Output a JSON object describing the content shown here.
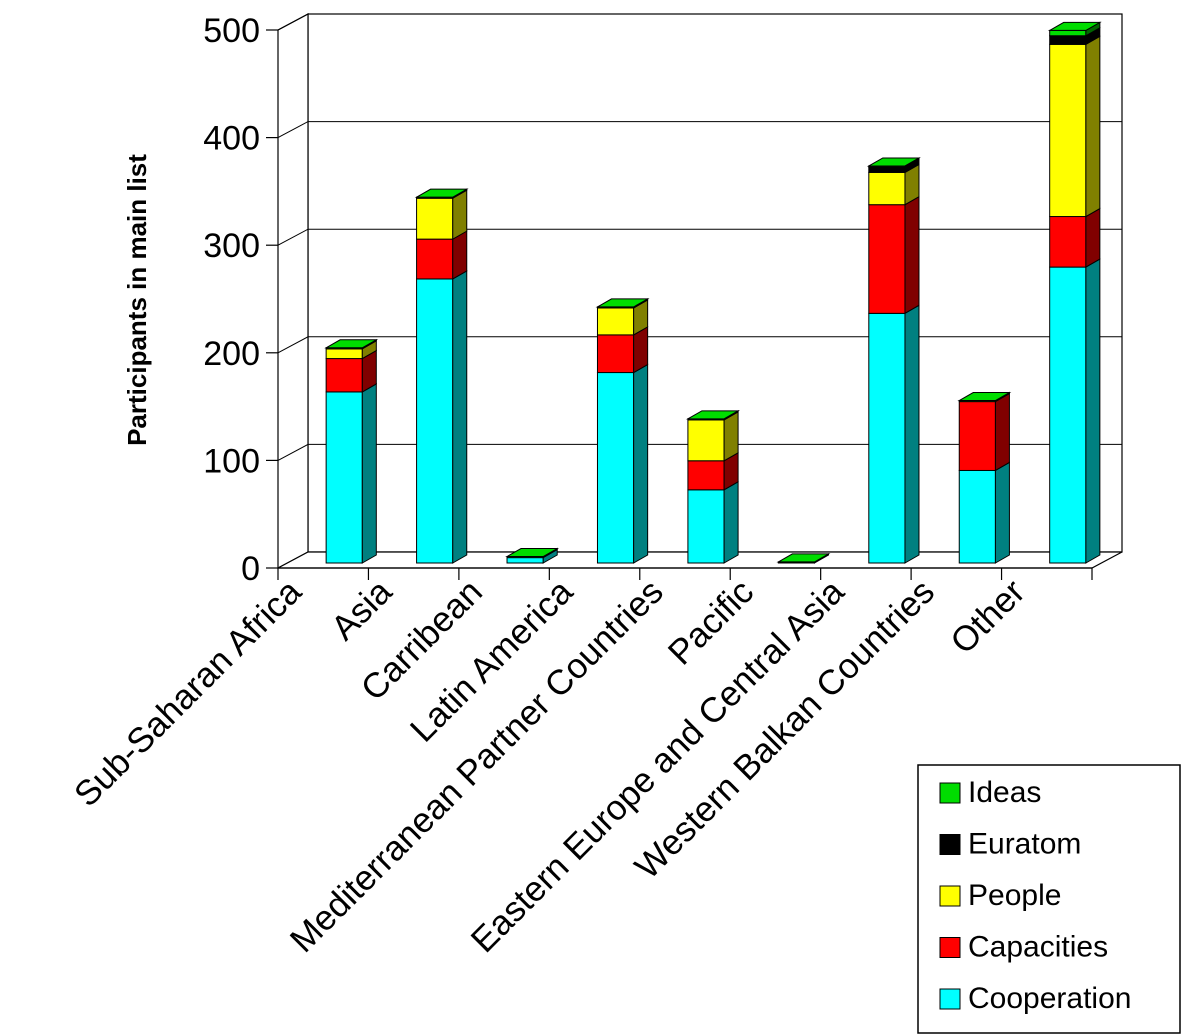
{
  "chart_data": {
    "type": "bar",
    "stacked": true,
    "three_d": true,
    "ylabel": "Participants in main list",
    "ylim": [
      0,
      500
    ],
    "yticks": [
      0,
      100,
      200,
      300,
      400,
      500
    ],
    "grid": true,
    "legend_position": "bottom-right",
    "categories": [
      "Sub-Saharan Africa",
      "Asia",
      "Carribean",
      "Latin America",
      "Mediterranean Partner Countries",
      "Pacific",
      "Eastern Europe and Central Asia",
      "Western Balkan Countries",
      "Other"
    ],
    "series": [
      {
        "name": "Cooperation",
        "color": "#00ffff",
        "side": "#008080",
        "values": [
          159,
          264,
          5,
          177,
          68,
          0,
          232,
          86,
          275
        ]
      },
      {
        "name": "Capacities",
        "color": "#ff0000",
        "side": "#800000",
        "values": [
          31,
          37,
          0,
          35,
          27,
          0,
          101,
          64,
          47
        ]
      },
      {
        "name": "People",
        "color": "#ffff00",
        "side": "#808000",
        "values": [
          9,
          38,
          0,
          25,
          38,
          0,
          30,
          0,
          160
        ]
      },
      {
        "name": "Euratom",
        "color": "#000000",
        "side": "#000000",
        "values": [
          0,
          0,
          0,
          0,
          0,
          0,
          5,
          0,
          8
        ]
      },
      {
        "name": "Ideas",
        "color": "#00dd00",
        "side": "#006600",
        "values": [
          1,
          1,
          1,
          1,
          1,
          1,
          1,
          1,
          5
        ]
      }
    ],
    "legend_order": [
      "Ideas",
      "Euratom",
      "People",
      "Capacities",
      "Cooperation"
    ]
  }
}
